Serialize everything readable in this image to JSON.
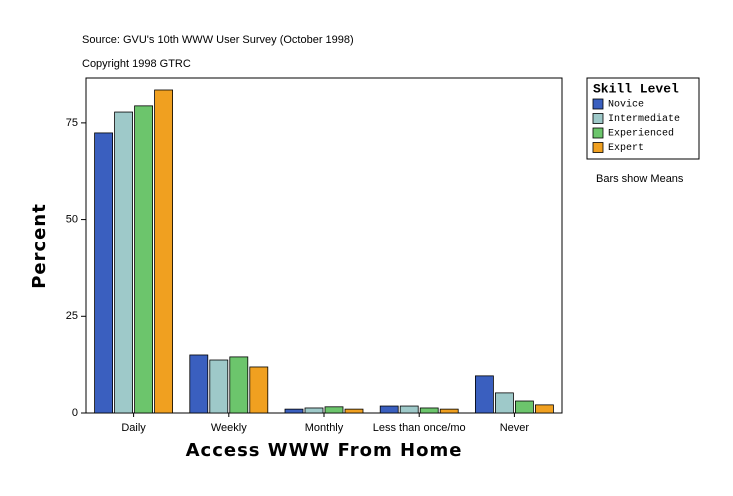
{
  "chart_data": {
    "type": "bar",
    "title": "Source: GVU's 10th WWW User Survey (October 1998)",
    "subtitle": "Copyright 1998 GTRC",
    "note": "Bars show Means",
    "legend_title": "Skill Level",
    "xlabel": "Access WWW From Home",
    "ylabel": "Percent",
    "categories": [
      "Daily",
      "Weekly",
      "Monthly",
      "Less than once/mo",
      "Never"
    ],
    "series": [
      {
        "name": "Novice",
        "color": "#3a5fbf",
        "values": [
          72.4,
          15.0,
          1.0,
          1.8,
          9.6
        ]
      },
      {
        "name": "Intermediate",
        "color": "#9ec9c9",
        "values": [
          77.8,
          13.7,
          1.3,
          1.8,
          5.2
        ]
      },
      {
        "name": "Experienced",
        "color": "#6cc56c",
        "values": [
          79.4,
          14.5,
          1.6,
          1.3,
          3.1
        ]
      },
      {
        "name": "Expert",
        "color": "#f0a020",
        "values": [
          83.5,
          11.9,
          1.0,
          1.0,
          2.1
        ]
      }
    ],
    "ylim": [
      0,
      86.6
    ],
    "yticks": [
      0,
      25,
      50,
      75
    ],
    "grid": false
  }
}
